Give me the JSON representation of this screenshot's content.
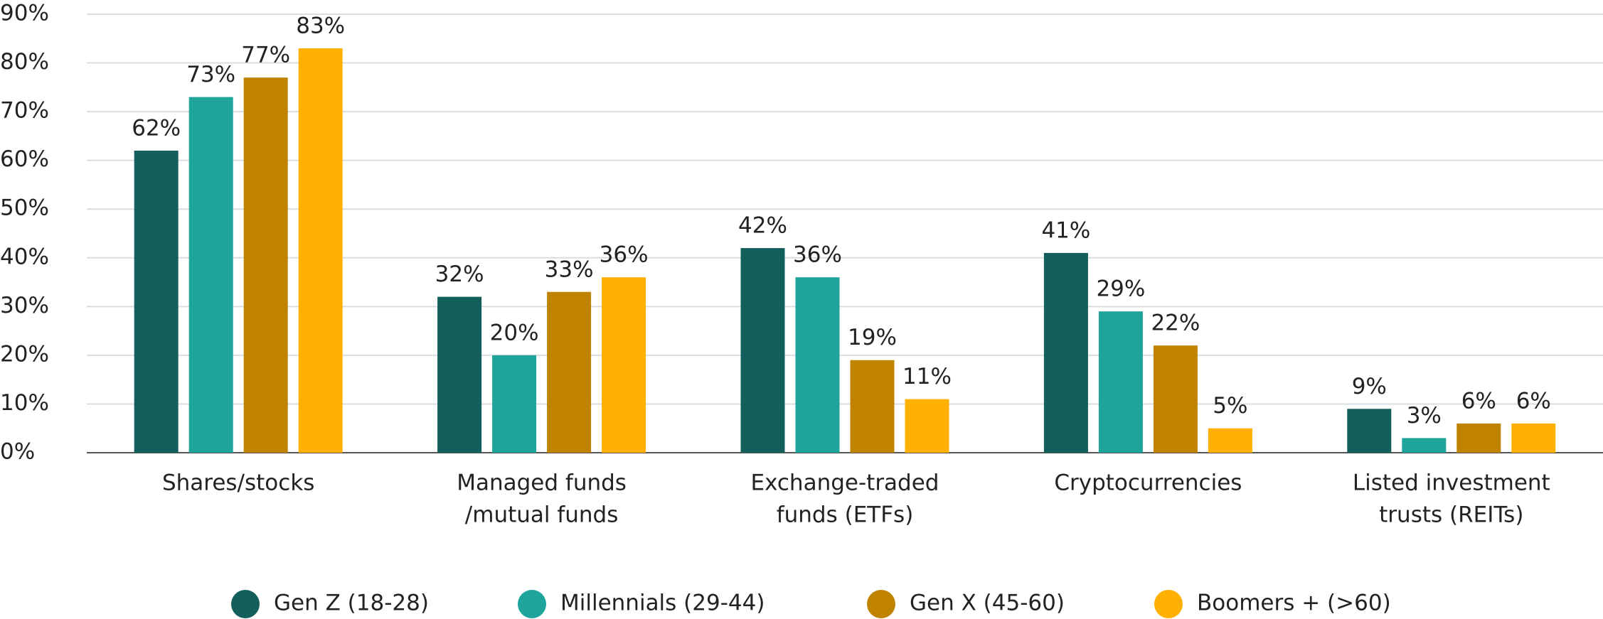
{
  "chart_data": {
    "type": "bar",
    "categories": [
      [
        "Shares/stocks"
      ],
      [
        "Managed funds",
        "/mutual funds"
      ],
      [
        "Exchange-traded",
        "funds (ETFs)"
      ],
      [
        "Cryptocurrencies"
      ],
      [
        "Listed investment",
        "trusts (REITs)"
      ]
    ],
    "series": [
      {
        "name": "Gen Z (18-28)",
        "color": "#135f5c",
        "values": [
          62,
          32,
          42,
          41,
          9
        ],
        "value_labels": [
          "62%",
          "32%",
          "42%",
          "41%",
          "9%"
        ]
      },
      {
        "name": "Millennials (29-44)",
        "color": "#1fa49c",
        "values": [
          73,
          20,
          36,
          29,
          3
        ],
        "value_labels": [
          "73%",
          "20%",
          "36%",
          "29%",
          "3%"
        ]
      },
      {
        "name": "Gen X (45-60)",
        "color": "#bf8300",
        "values": [
          77,
          33,
          19,
          22,
          6
        ],
        "value_labels": [
          "77%",
          "33%",
          "19%",
          "22%",
          "6%"
        ]
      },
      {
        "name": "Boomers + (>60)",
        "color": "#ffb000",
        "values": [
          83,
          36,
          11,
          5,
          6
        ],
        "value_labels": [
          "83%",
          "36%",
          "11%",
          "5%",
          "6%"
        ]
      }
    ],
    "ylim": [
      0,
      90
    ],
    "yticks": [
      {
        "value": 0,
        "label": "0%"
      },
      {
        "value": 10,
        "label": "10%"
      },
      {
        "value": 20,
        "label": "20%"
      },
      {
        "value": 30,
        "label": "30%"
      },
      {
        "value": 40,
        "label": "40%"
      },
      {
        "value": 50,
        "label": "50%"
      },
      {
        "value": 60,
        "label": "60%"
      },
      {
        "value": 70,
        "label": "70%"
      },
      {
        "value": 80,
        "label": "80%"
      },
      {
        "value": 90,
        "label": "90%"
      }
    ],
    "grid": true,
    "legend": "bottom"
  }
}
